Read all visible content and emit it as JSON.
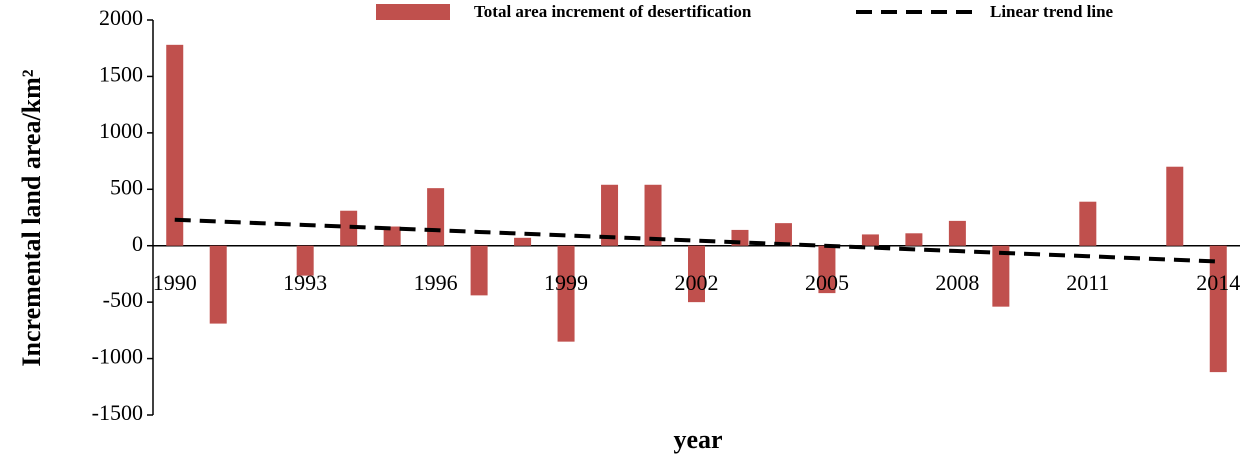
{
  "chart_data": {
    "type": "bar",
    "x_label": "year",
    "y_label": "Incremental land area/km²",
    "categories": [
      "1990",
      null,
      null,
      "1993",
      null,
      null,
      "1996",
      null,
      null,
      "1999",
      null,
      null,
      "2002",
      null,
      null,
      "2005",
      null,
      null,
      "2008",
      null,
      null,
      "2011",
      null,
      null,
      "2014"
    ],
    "series": [
      {
        "name": "Total area increment of desertification",
        "type": "bar",
        "color": "#c0504d",
        "values": [
          1780,
          -690,
          0,
          -265,
          310,
          170,
          510,
          -440,
          70,
          -850,
          540,
          540,
          -500,
          140,
          200,
          -420,
          100,
          110,
          220,
          -540,
          0,
          390,
          0,
          700,
          -1120
        ]
      },
      {
        "name": "Linear trend line",
        "type": "line",
        "color": "#000000",
        "values": [
          230,
          215,
          199,
          184,
          168,
          153,
          138,
          122,
          107,
          91,
          76,
          61,
          45,
          30,
          14,
          -1,
          -16,
          -32,
          -47,
          -63,
          -78,
          -93,
          -109,
          -124,
          -140
        ]
      }
    ],
    "ylim": [
      -1500,
      2000
    ],
    "yticks": [
      2000,
      1500,
      1000,
      500,
      0,
      -500,
      -1000,
      -1500
    ],
    "grid": false,
    "legend": "top"
  }
}
